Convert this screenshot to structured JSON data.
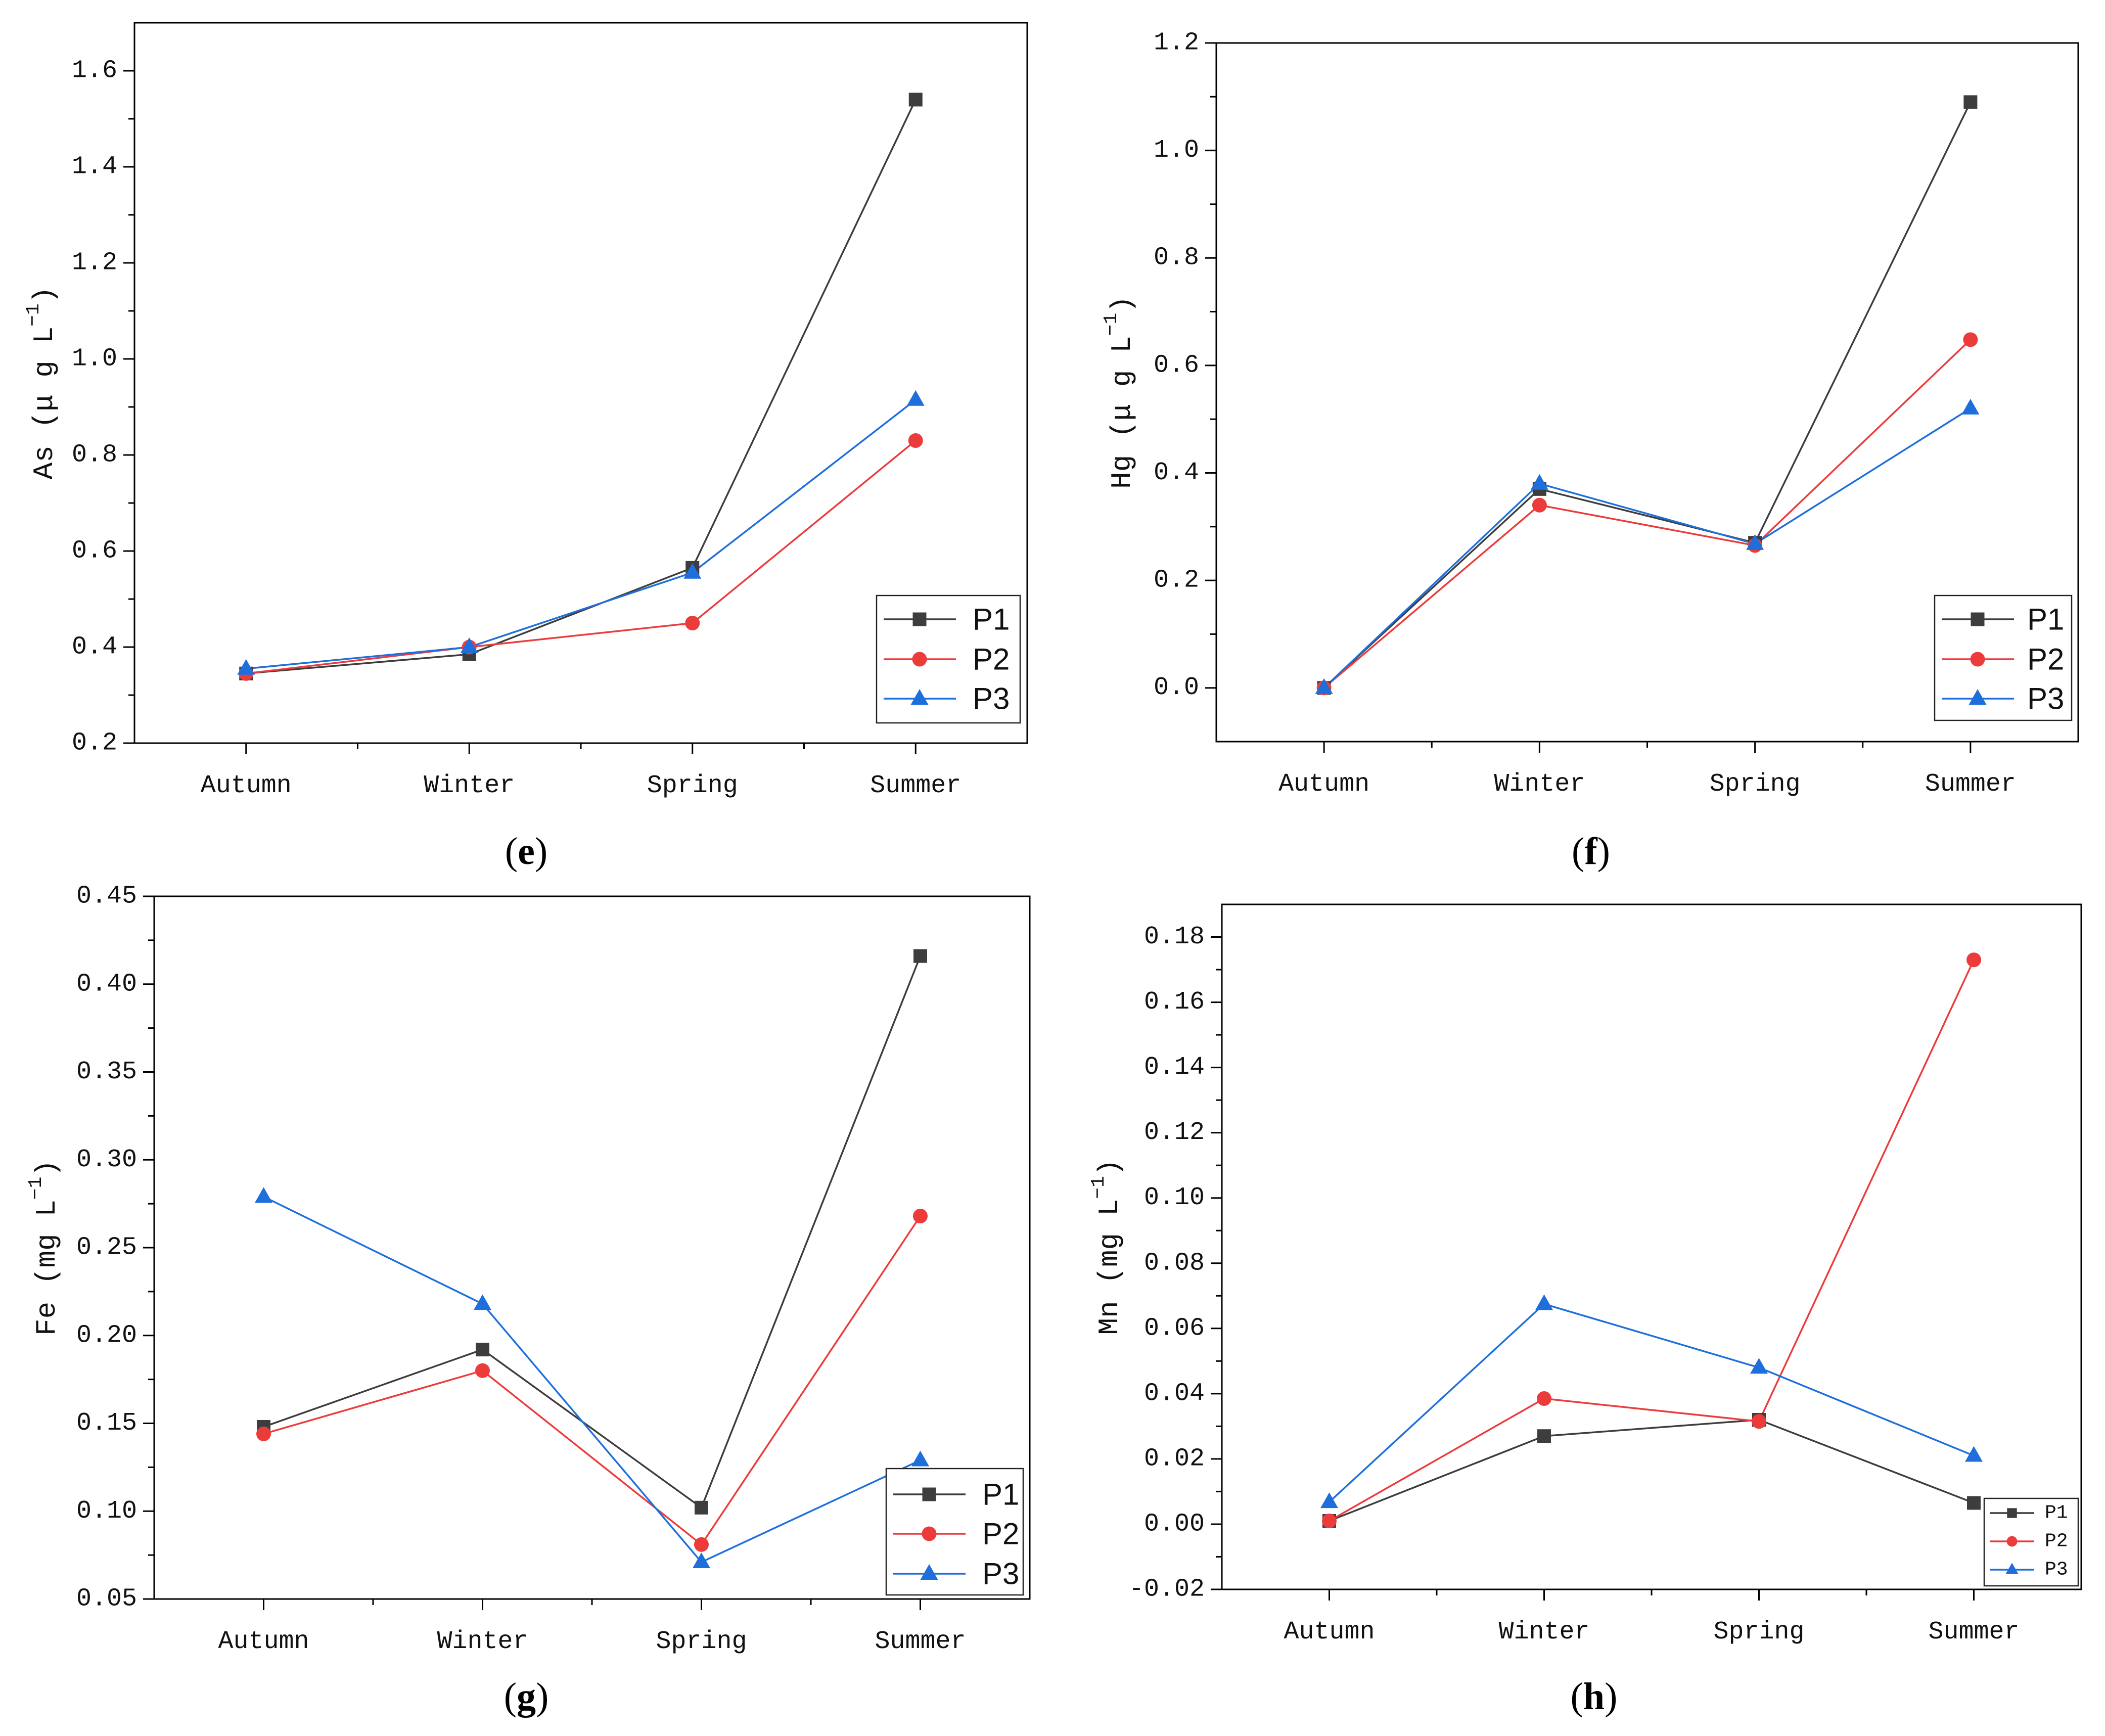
{
  "chart_data": [
    {
      "type": "line",
      "panel_label": {
        "open": "(",
        "letter": "e",
        "close": ")"
      },
      "ylabel": {
        "text": "As (μ g L",
        "sup": "−1",
        "close": ")"
      },
      "categories": [
        "Autumn",
        "Winter",
        "Spring",
        "Summer"
      ],
      "ylim": [
        0.2,
        1.7
      ],
      "yticks": [
        0.2,
        0.4,
        0.6,
        0.8,
        1.0,
        1.2,
        1.4,
        1.6
      ],
      "ytick_labels": [
        "0.2",
        "0.4",
        "0.6",
        "0.8",
        "1.0",
        "1.2",
        "1.4",
        "1.6"
      ],
      "legend": "bottom-right",
      "series": [
        {
          "name": "P1",
          "color": "#3d3d3d",
          "values": [
            0.345,
            0.385,
            0.565,
            1.54
          ]
        },
        {
          "name": "P2",
          "color": "#ec3b3b",
          "values": [
            0.345,
            0.4,
            0.45,
            0.83
          ]
        },
        {
          "name": "P3",
          "color": "#1e6fdc",
          "values": [
            0.355,
            0.4,
            0.555,
            0.915
          ]
        }
      ]
    },
    {
      "type": "line",
      "panel_label": {
        "open": "(",
        "letter": "f",
        "close": ")"
      },
      "ylabel": {
        "text": "Hg (μ g L",
        "sup": "−1",
        "close": ")"
      },
      "categories": [
        "Autumn",
        "Winter",
        "Spring",
        "Summer"
      ],
      "ylim": [
        -0.1,
        1.2
      ],
      "yticks": [
        0.0,
        0.2,
        0.4,
        0.6,
        0.8,
        1.0,
        1.2
      ],
      "ytick_labels": [
        "0.0",
        "0.2",
        "0.4",
        "0.6",
        "0.8",
        "1.0",
        "1.2"
      ],
      "legend": "bottom-right",
      "series": [
        {
          "name": "P1",
          "color": "#3d3d3d",
          "values": [
            0.0,
            0.37,
            0.27,
            1.09
          ]
        },
        {
          "name": "P2",
          "color": "#ec3b3b",
          "values": [
            0.0,
            0.34,
            0.265,
            0.648
          ]
        },
        {
          "name": "P3",
          "color": "#1e6fdc",
          "values": [
            0.0,
            0.38,
            0.268,
            0.52
          ]
        }
      ]
    },
    {
      "type": "line",
      "panel_label": {
        "open": "(",
        "letter": "g",
        "close": ")"
      },
      "ylabel": {
        "text": "Fe (mg L",
        "sup": "−1",
        "close": ")"
      },
      "categories": [
        "Autumn",
        "Winter",
        "Spring",
        "Summer"
      ],
      "ylim": [
        0.05,
        0.45
      ],
      "yticks": [
        0.05,
        0.1,
        0.15,
        0.2,
        0.25,
        0.3,
        0.35,
        0.4,
        0.45
      ],
      "ytick_labels": [
        "0.05",
        "0.10",
        "0.15",
        "0.20",
        "0.25",
        "0.30",
        "0.35",
        "0.40",
        "0.45"
      ],
      "legend": "bottom-right",
      "series": [
        {
          "name": "P1",
          "color": "#3d3d3d",
          "values": [
            0.148,
            0.192,
            0.102,
            0.416
          ]
        },
        {
          "name": "P2",
          "color": "#ec3b3b",
          "values": [
            0.144,
            0.18,
            0.081,
            0.268
          ]
        },
        {
          "name": "P3",
          "color": "#1e6fdc",
          "values": [
            0.279,
            0.218,
            0.071,
            0.129
          ]
        }
      ]
    },
    {
      "type": "line",
      "panel_label": {
        "open": "(",
        "letter": "h",
        "close": ")"
      },
      "ylabel": {
        "text": "Mn (mg L",
        "sup": "−1",
        "close": ")"
      },
      "categories": [
        "Autumn",
        "Winter",
        "Spring",
        "Summer"
      ],
      "ylim": [
        -0.02,
        0.19
      ],
      "yticks": [
        -0.02,
        0.0,
        0.02,
        0.04,
        0.06,
        0.08,
        0.1,
        0.12,
        0.14,
        0.16,
        0.18
      ],
      "ytick_labels": [
        "-0.02",
        "0.00",
        "0.02",
        "0.04",
        "0.06",
        "0.08",
        "0.10",
        "0.12",
        "0.14",
        "0.16",
        "0.18"
      ],
      "legend": "bottom-right",
      "series": [
        {
          "name": "P1",
          "color": "#3d3d3d",
          "values": [
            0.001,
            0.027,
            0.032,
            0.0065
          ]
        },
        {
          "name": "P2",
          "color": "#ec3b3b",
          "values": [
            0.001,
            0.0385,
            0.0315,
            0.173
          ]
        },
        {
          "name": "P3",
          "color": "#1e6fdc",
          "values": [
            0.0068,
            0.0675,
            0.048,
            0.021
          ]
        }
      ]
    }
  ]
}
